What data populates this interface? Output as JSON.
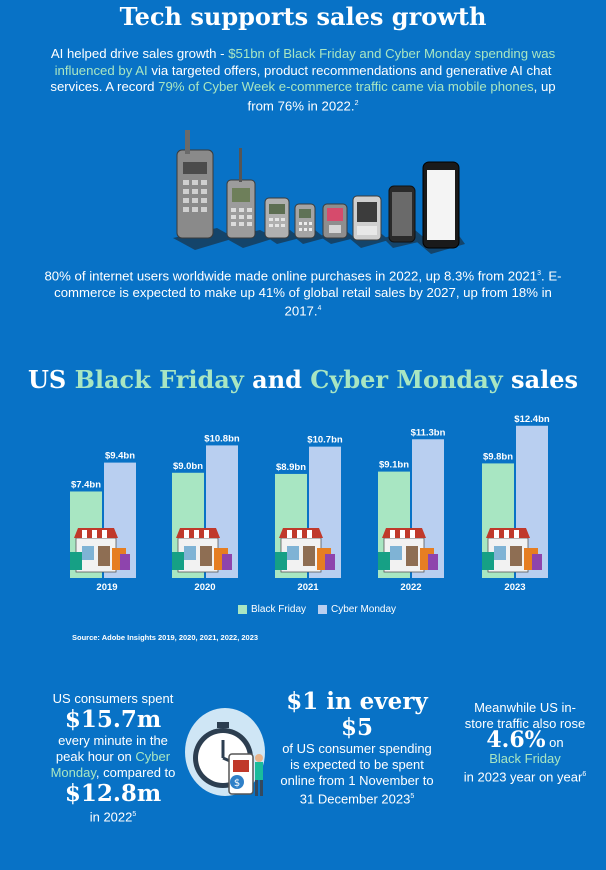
{
  "header": {
    "title": "Tech supports sales growth"
  },
  "intro": {
    "p1_a": "AI helped drive sales growth - ",
    "p1_b": "$51bn of Black Friday and Cyber Monday spending was influenced by AI",
    "p1_c": " via targeted offers, product recommendations and generative AI chat services. A record ",
    "p1_d": "79% of Cyber Week e-commerce traffic came via mobile phones",
    "p1_e": ", up from 76% in 2022.",
    "p1_sup": "2",
    "p2_a": "80% of internet users worldwide made online purchases in 2022, up 8.3% from 2021",
    "p2_sup1": "3",
    "p2_b": ". E-commerce is expected to make up 41% of global retail sales by 2027, up from 18% in 2017.",
    "p2_sup2": "4"
  },
  "section": {
    "t1": "US ",
    "t2": "Black Friday",
    "t3": " and ",
    "t4": "Cyber Monday",
    "t5": " sales"
  },
  "chart_data": {
    "type": "bar",
    "categories": [
      "2019",
      "2020",
      "2021",
      "2022",
      "2023"
    ],
    "series": [
      {
        "name": "Black Friday",
        "values": [
          7.4,
          9.0,
          8.9,
          9.1,
          9.8
        ],
        "labels": [
          "$7.4bn",
          "$9.0bn",
          "$8.9bn",
          "$9.1bn",
          "$9.8bn"
        ],
        "color": "#a8e6c2"
      },
      {
        "name": "Cyber Monday",
        "values": [
          9.4,
          10.8,
          10.7,
          11.3,
          12.4
        ],
        "labels": [
          "$9.4bn",
          "$10.8bn",
          "$10.7bn",
          "$11.3bn",
          "$12.4bn"
        ],
        "color": "#b9cff0"
      }
    ],
    "ylim": [
      0,
      13
    ],
    "legend": "bottom",
    "grid": false
  },
  "source": "Source: Adobe Insights 2019, 2020, 2021, 2022, 2023",
  "stats": {
    "s1_a": "US consumers spent",
    "s1_big1": "$15.7m",
    "s1_b": "every minute in the peak hour on",
    "s1_c": "Cyber Monday",
    "s1_d": ", compared to",
    "s1_big2": "$12.8m",
    "s1_e": "in 2022",
    "s1_sup": "5",
    "s2_big": "$1 in every $5",
    "s2_a": "of US consumer spending is expected to be spent online from 1 November to 31 December 2023",
    "s2_sup": "5",
    "s3_a": "Meanwhile US in-store traffic also rose",
    "s3_big": "4.6%",
    "s3_b": "on",
    "s3_c": "Black Friday",
    "s3_d": "in 2023 year on year",
    "s3_sup": "6"
  },
  "icons": {
    "phones": "mobile-phones-evolution-icon",
    "store": "storefront-shopping-bags-icon",
    "clock": "clock-phone-payment-icon"
  },
  "colors": {
    "background": "#0872c6",
    "accent": "#a8e6c2",
    "black_friday": "#a8e6c2",
    "cyber_monday": "#b9cff0"
  }
}
